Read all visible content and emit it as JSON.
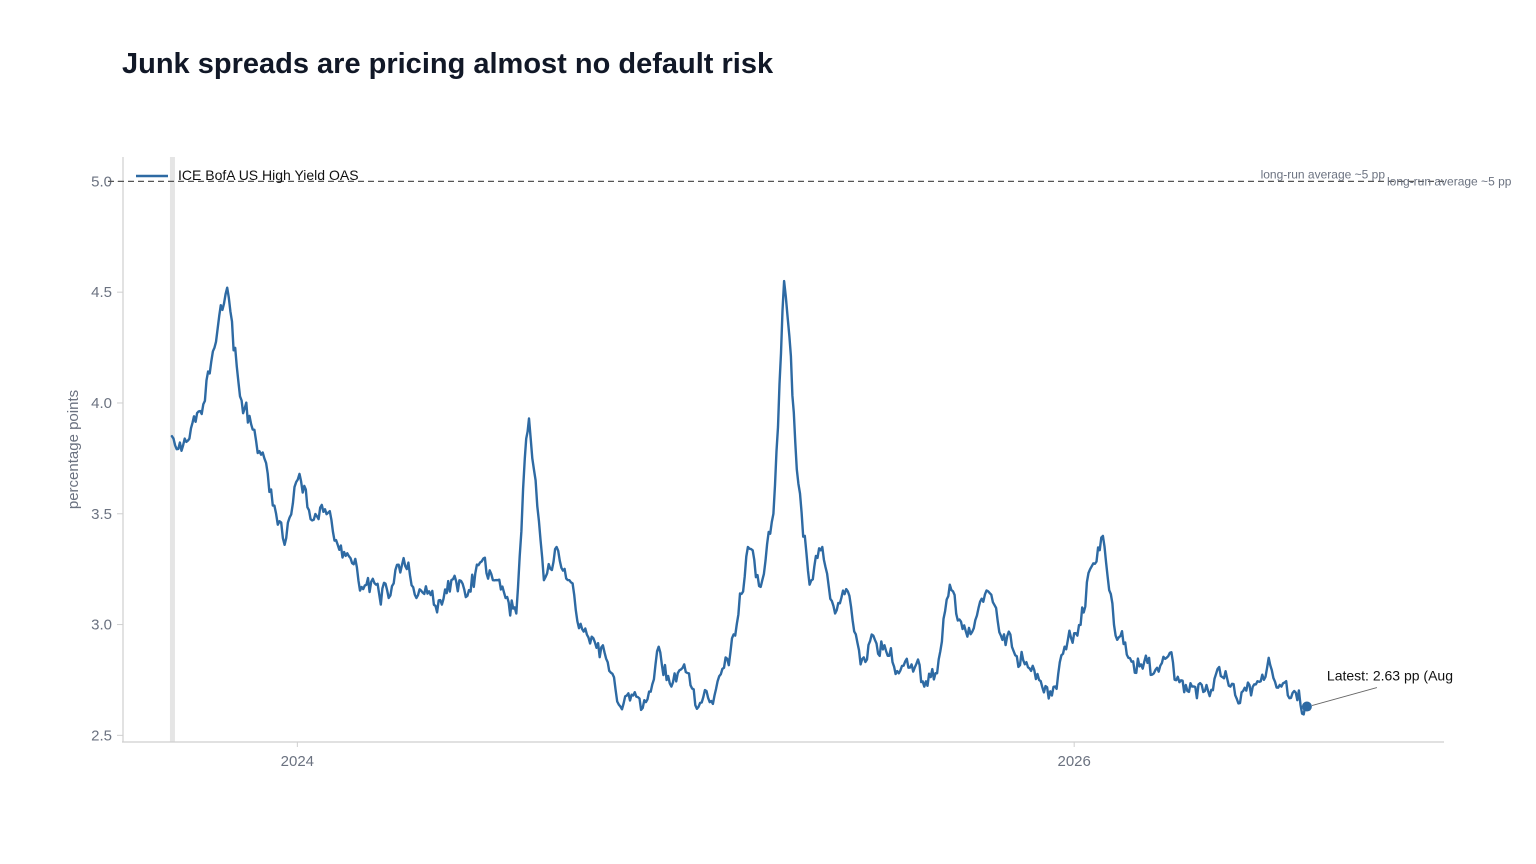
{
  "title": "Junk spreads are pricing almost no default risk",
  "chart_data": {
    "type": "line",
    "title": "Junk spreads are pricing almost no default risk",
    "xlabel": "",
    "ylabel": "percentage points",
    "xlim": [
      "2023-07-20",
      "2026-12-15"
    ],
    "ylim": [
      2.47,
      5.11
    ],
    "yticks": [
      2.5,
      3.0,
      3.5,
      4.0,
      4.5,
      5.0
    ],
    "ytick_labels": [
      "2.5",
      "3.0",
      "3.5",
      "4.0",
      "4.5",
      "5.0"
    ],
    "xticks": [
      "2024-01-01",
      "2026-01-01"
    ],
    "xtick_labels": [
      "2024",
      "2026"
    ],
    "grid": false,
    "legend_position": "top-left",
    "colors": {
      "line": "#2e6aa3",
      "axis": "#cfcfcf",
      "reference": "#555555",
      "vertical_band": "#e5e5e5"
    },
    "series": [
      {
        "name": "ICE BofA US High Yield OAS",
        "x": [
          "2023-09-05",
          "2023-09-20",
          "2023-10-03",
          "2023-10-15",
          "2023-10-27",
          "2023-11-08",
          "2023-11-20",
          "2023-12-01",
          "2023-12-12",
          "2023-12-20",
          "2024-01-03",
          "2024-01-15",
          "2024-01-27",
          "2024-02-08",
          "2024-02-20",
          "2024-03-03",
          "2024-03-15",
          "2024-03-27",
          "2024-04-10",
          "2024-04-22",
          "2024-05-04",
          "2024-05-16",
          "2024-05-28",
          "2024-06-09",
          "2024-06-21",
          "2024-07-03",
          "2024-07-15",
          "2024-07-25",
          "2024-08-02",
          "2024-08-06",
          "2024-08-20",
          "2024-09-01",
          "2024-09-13",
          "2024-09-25",
          "2024-10-07",
          "2024-10-19",
          "2024-10-31",
          "2024-11-12",
          "2024-11-24",
          "2024-12-06",
          "2024-12-18",
          "2024-12-30",
          "2025-01-11",
          "2025-01-23",
          "2025-02-04",
          "2025-02-16",
          "2025-02-28",
          "2025-03-12",
          "2025-03-24",
          "2025-04-03",
          "2025-04-08",
          "2025-04-15",
          "2025-04-27",
          "2025-05-09",
          "2025-05-21",
          "2025-06-02",
          "2025-06-14",
          "2025-06-26",
          "2025-07-08",
          "2025-07-20",
          "2025-08-01",
          "2025-08-13",
          "2025-08-25",
          "2025-09-06",
          "2025-09-18",
          "2025-09-30",
          "2025-10-12",
          "2025-10-24",
          "2025-11-05",
          "2025-11-17",
          "2025-11-29",
          "2025-12-11",
          "2025-12-23",
          "2026-01-04",
          "2026-01-16",
          "2026-01-28",
          "2026-02-09",
          "2026-02-21",
          "2026-03-05",
          "2026-03-17",
          "2026-03-29",
          "2026-04-10",
          "2026-04-22",
          "2026-05-04",
          "2026-05-16",
          "2026-05-28",
          "2026-06-09",
          "2026-06-21",
          "2026-07-03",
          "2026-07-15",
          "2026-07-27",
          "2026-08-08"
        ],
        "values": [
          3.85,
          3.83,
          3.95,
          4.25,
          4.52,
          4.03,
          3.88,
          3.75,
          3.5,
          3.36,
          3.68,
          3.47,
          3.52,
          3.36,
          3.3,
          3.16,
          3.18,
          3.12,
          3.3,
          3.12,
          3.15,
          3.09,
          3.22,
          3.13,
          3.28,
          3.2,
          3.12,
          3.05,
          3.75,
          3.93,
          3.2,
          3.35,
          3.2,
          2.98,
          2.92,
          2.83,
          2.63,
          2.68,
          2.65,
          2.9,
          2.72,
          2.82,
          2.62,
          2.65,
          2.8,
          2.95,
          3.35,
          3.17,
          3.5,
          4.55,
          4.3,
          3.7,
          3.18,
          3.35,
          3.05,
          3.15,
          2.82,
          2.95,
          2.88,
          2.78,
          2.82,
          2.72,
          2.78,
          3.18,
          2.98,
          3.02,
          3.15,
          2.95,
          2.88,
          2.83,
          2.75,
          2.68,
          2.9,
          2.95,
          3.25,
          3.4,
          2.95,
          2.85,
          2.82,
          2.78,
          2.85,
          2.74,
          2.72,
          2.7,
          2.8,
          2.72,
          2.7,
          2.73,
          2.85,
          2.72,
          2.7,
          2.63
        ]
      }
    ],
    "reference_line": {
      "value": 5.0,
      "label": "long-run average ~5 pp"
    },
    "annotations": [
      {
        "text": "Latest: 2.63 pp  (Aug",
        "x": "2026-08-08",
        "y": 2.63
      }
    ]
  }
}
